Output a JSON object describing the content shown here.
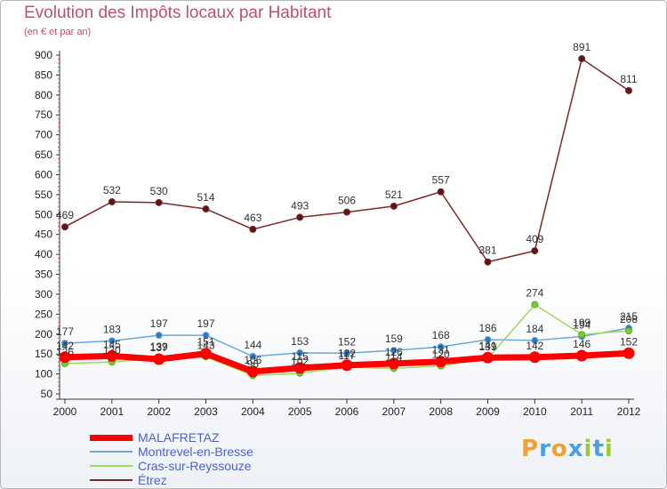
{
  "header": {
    "title": "Evolution des Impôts locaux par Habitant",
    "subtitle": "(en € et par an)"
  },
  "chart_data": {
    "type": "line",
    "title": "Evolution des Impôts locaux par Habitant",
    "subtitle": "(en € et par an)",
    "xlabel": "",
    "ylabel": "",
    "x": [
      2000,
      2001,
      2002,
      2003,
      2004,
      2005,
      2006,
      2007,
      2008,
      2009,
      2010,
      2011,
      2012
    ],
    "y_ticks": [
      50,
      100,
      150,
      200,
      250,
      300,
      350,
      400,
      450,
      500,
      550,
      600,
      650,
      700,
      750,
      800,
      850,
      900
    ],
    "ylim": [
      50,
      900
    ],
    "grid": false,
    "legend_position": "bottom-left",
    "series": [
      {
        "name": "MALAFRETAZ",
        "color": "#ff0000",
        "values": [
          142,
          145,
          137,
          151,
          106,
          115,
          122,
          126,
          131,
          141,
          142,
          146,
          152
        ]
      },
      {
        "name": "Montrevel-en-Bresse",
        "color": "#6ea7d6",
        "values": [
          177,
          183,
          197,
          197,
          144,
          153,
          152,
          159,
          168,
          186,
          184,
          194,
          215
        ]
      },
      {
        "name": "Cras-sur-Reyssouze",
        "color": "#99dd55",
        "values": [
          126,
          130,
          139,
          143,
          96,
          102,
          117,
          114,
          120,
          139,
          274,
          199,
          208
        ]
      },
      {
        "name": "Étrez",
        "color": "#7b2a2a",
        "values": [
          469,
          532,
          530,
          514,
          463,
          493,
          506,
          521,
          557,
          381,
          409,
          891,
          811
        ]
      }
    ]
  },
  "logo": {
    "letters": [
      "P",
      "r",
      "o",
      "x",
      "i",
      "t",
      "i"
    ],
    "colors": [
      "#f0a030",
      "#4aa0e0",
      "#f0a030",
      "#4aa0e0",
      "#99cc33",
      "#4aa0e0",
      "#99cc33"
    ]
  }
}
